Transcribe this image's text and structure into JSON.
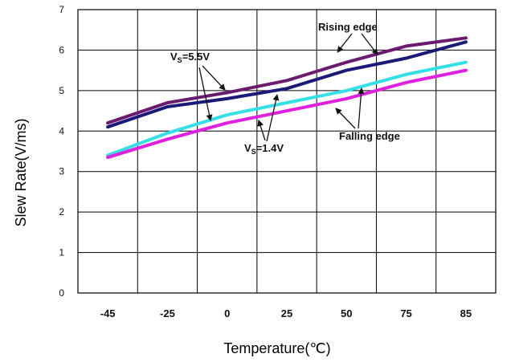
{
  "chart_data": {
    "type": "line",
    "title": "",
    "xlabel": "Temperature(℃)",
    "ylabel": "Slew Rate(V/ms)",
    "categories": [
      "-45",
      "-25",
      "0",
      "25",
      "50",
      "75",
      "85"
    ],
    "ylim": [
      0,
      7
    ],
    "yticks": [
      "0",
      "1",
      "2",
      "3",
      "4",
      "5",
      "6",
      "7"
    ],
    "grid": true,
    "legend": "none",
    "series": [
      {
        "color": "#6b1a6f",
        "values": [
          4.2,
          4.7,
          4.95,
          5.25,
          5.7,
          6.1,
          6.3
        ]
      },
      {
        "color": "#1a1a78",
        "values": [
          4.1,
          4.6,
          4.8,
          5.05,
          5.5,
          5.8,
          6.2
        ]
      },
      {
        "color": "#33e0e8",
        "values": [
          3.4,
          3.95,
          4.4,
          4.7,
          5.0,
          5.4,
          5.7
        ]
      },
      {
        "color": "#e020e0",
        "values": [
          3.35,
          3.8,
          4.2,
          4.5,
          4.8,
          5.2,
          5.5
        ]
      }
    ],
    "annotations": {
      "rising": "Rising edge",
      "falling": "Falling edge",
      "vs_high_prefix": "V",
      "vs_high_sub": "S",
      "vs_high_value": "=5.5V",
      "vs_low_prefix": "V",
      "vs_low_sub": "S",
      "vs_low_value": "=1.4V"
    }
  }
}
